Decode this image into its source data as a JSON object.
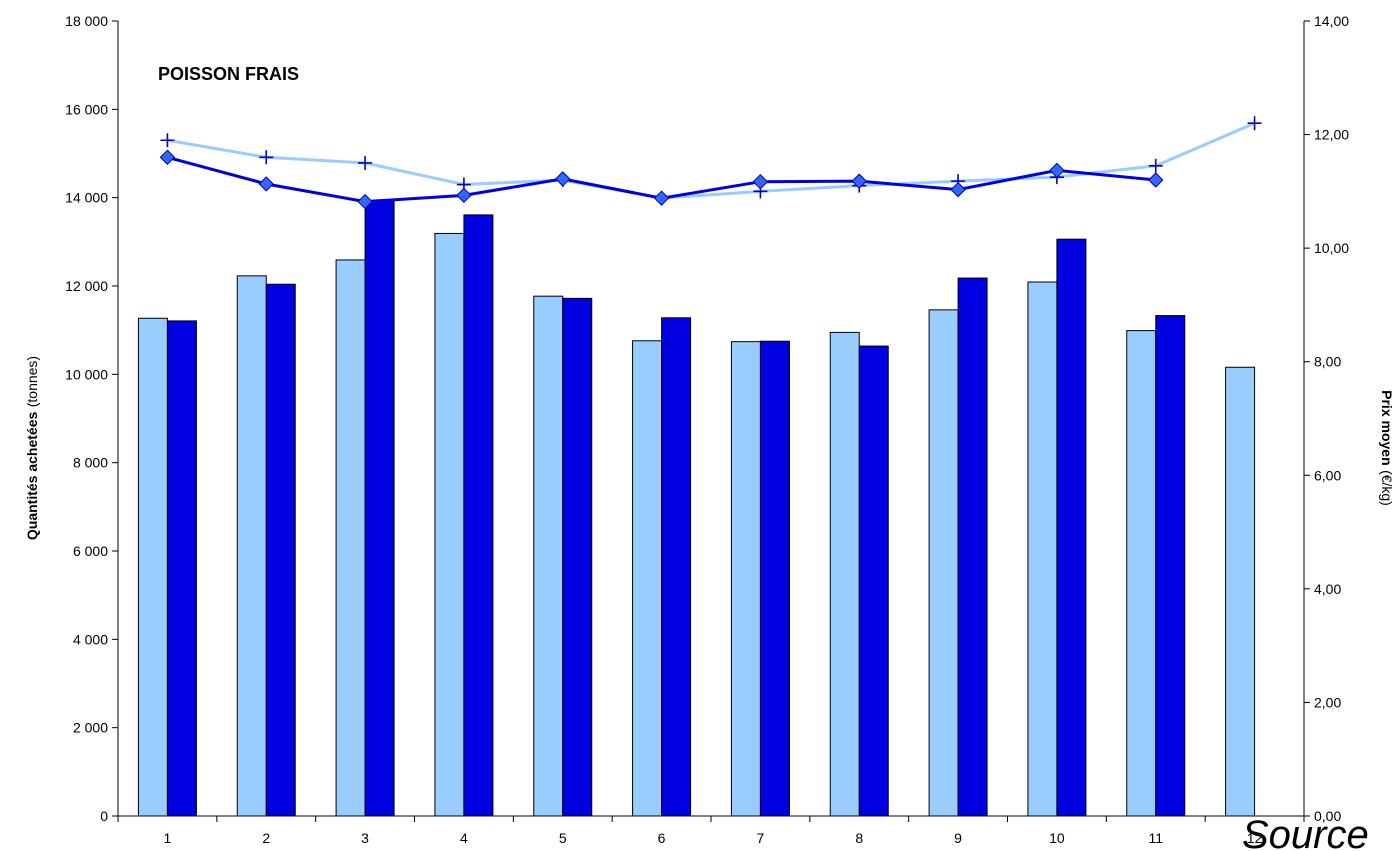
{
  "chart_data": {
    "type": "bar+line",
    "title": "POISSON FRAIS",
    "categories": [
      "1",
      "2",
      "3",
      "4",
      "5",
      "6",
      "7",
      "8",
      "9",
      "10",
      "11",
      "12"
    ],
    "y_left": {
      "label_bold": "Quantités achetées",
      "label_unit": "(tonnes)",
      "range": [
        0,
        18000
      ],
      "ticks": [
        "0",
        "2 000",
        "4 000",
        "6 000",
        "8 000",
        "10 000",
        "12 000",
        "14 000",
        "16 000",
        "18 000"
      ]
    },
    "y_right": {
      "label_bold": "Prix moyen",
      "label_unit": "(€/kg)",
      "range": [
        0,
        14
      ],
      "ticks": [
        "0,00",
        "2,00",
        "4,00",
        "6,00",
        "8,00",
        "10,00",
        "12,00",
        "14,00"
      ]
    },
    "bar_series": [
      {
        "color": "#99ccff",
        "values": [
          11270,
          12230,
          12590,
          13190,
          11770,
          10760,
          10740,
          10950,
          11460,
          12090,
          10990,
          10160
        ]
      },
      {
        "color": "#0000e0",
        "values": [
          11210,
          12040,
          13930,
          13610,
          11720,
          11280,
          10750,
          10640,
          12180,
          13060,
          11330,
          null
        ]
      }
    ],
    "line_series": [
      {
        "color": "#99ccff",
        "marker": "plus",
        "marker_color": "#0000cc",
        "values": [
          11.9,
          11.6,
          11.5,
          11.12,
          11.2,
          10.88,
          11.0,
          11.1,
          11.18,
          11.25,
          11.45,
          12.2
        ]
      },
      {
        "color": "#0000e0",
        "marker": "diamond",
        "marker_color": "#3366ff",
        "values": [
          11.6,
          11.13,
          10.82,
          10.93,
          11.22,
          10.88,
          11.17,
          11.18,
          11.03,
          11.37,
          11.2,
          null
        ]
      }
    ],
    "grid": false,
    "source_text": "Source"
  }
}
